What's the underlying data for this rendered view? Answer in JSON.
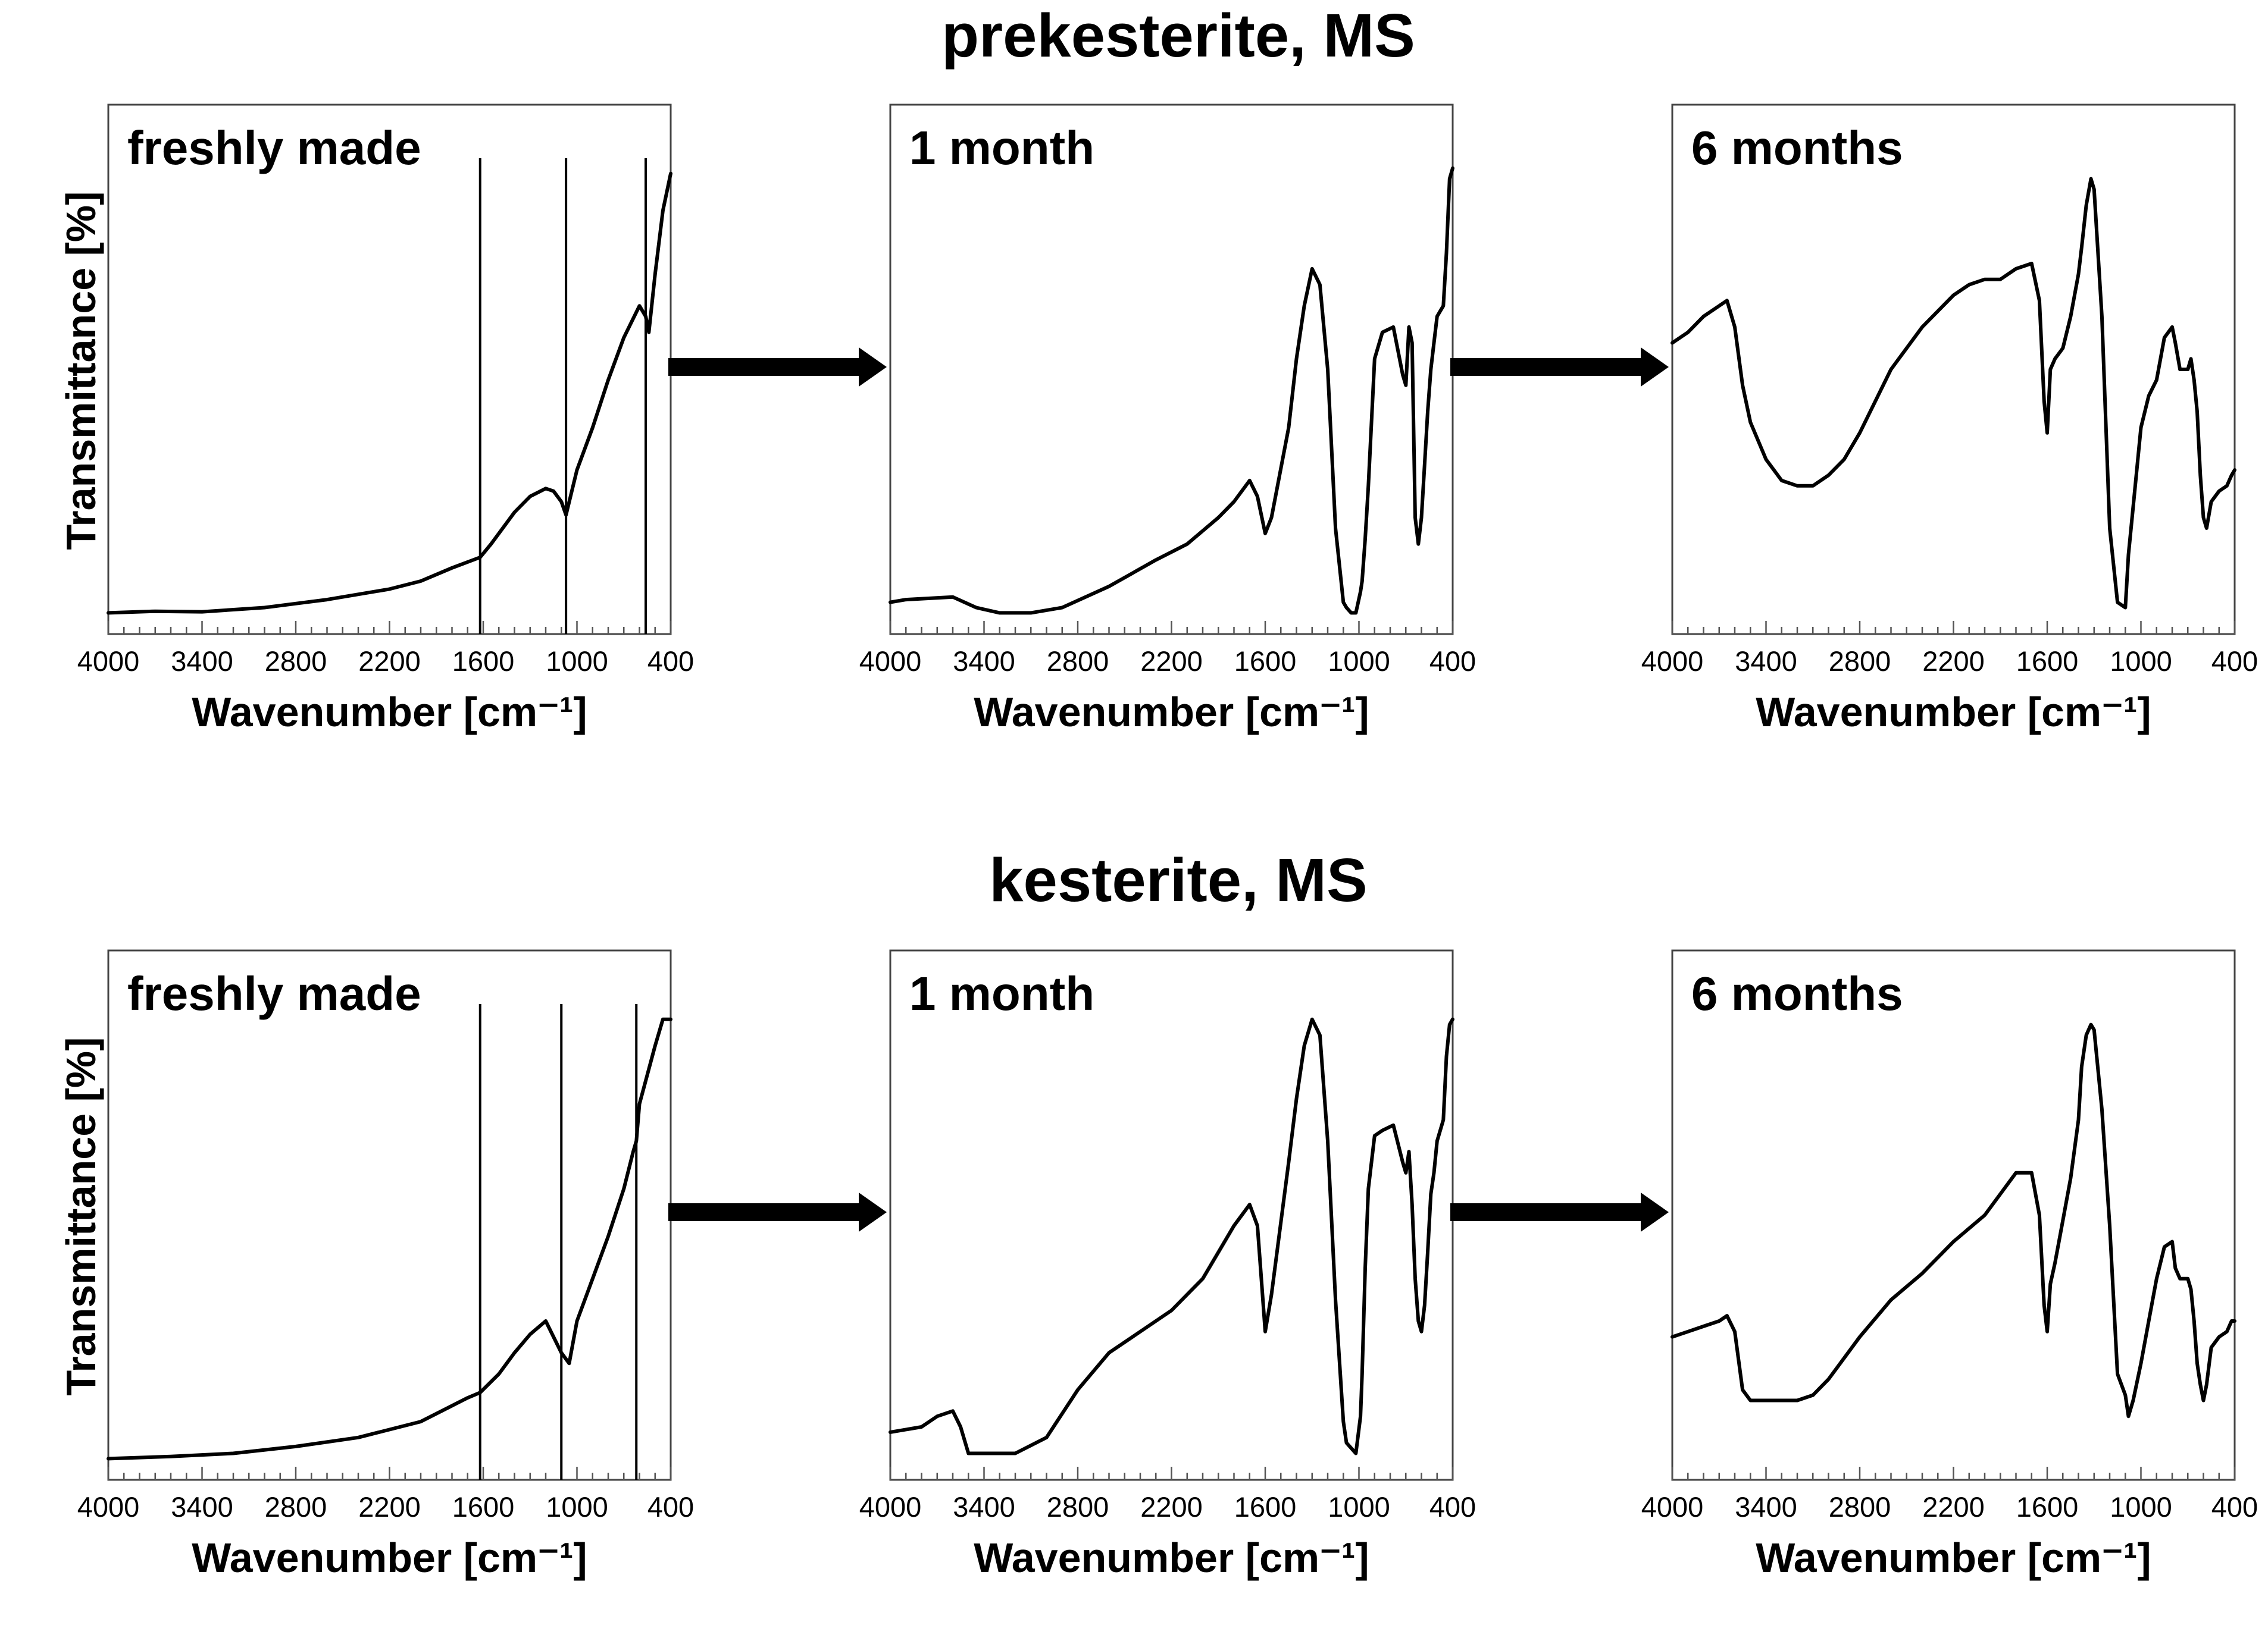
{
  "chart_data": [
    {
      "type": "line",
      "row_title": "prekesterite, MS",
      "ylabel": "Transmittance [%]",
      "xlabel": "Wavenumber [cm⁻¹]",
      "xlim": [
        4000,
        400
      ],
      "ylim": [
        0,
        100
      ],
      "xticks": [
        "4000",
        "3400",
        "2800",
        "2200",
        "1600",
        "1000",
        "400"
      ],
      "arrows_between_panels": true,
      "panels": [
        {
          "label": "freshly made",
          "markers": [
            1620,
            1070,
            560
          ],
          "series": [
            {
              "name": "freshly made",
              "x": [
                4000,
                3700,
                3400,
                3000,
                2600,
                2200,
                2000,
                1800,
                1620,
                1550,
                1400,
                1300,
                1200,
                1150,
                1100,
                1070,
                1000,
                900,
                800,
                700,
                600,
                560,
                540,
                500,
                450,
                400
              ],
              "y": [
                4,
                4.3,
                4.2,
                5,
                6.5,
                8.5,
                10,
                12.5,
                14.5,
                17,
                23,
                26,
                27.5,
                27,
                25,
                22.5,
                31,
                39,
                48,
                56,
                62,
                60,
                57,
                68,
                80,
                87
              ]
            }
          ]
        },
        {
          "label": "1 month",
          "markers": [],
          "series": [
            {
              "name": "1 month",
              "x": [
                4000,
                3900,
                3600,
                3450,
                3300,
                3100,
                2900,
                2600,
                2300,
                2100,
                1900,
                1800,
                1700,
                1650,
                1600,
                1560,
                1450,
                1400,
                1350,
                1300,
                1250,
                1200,
                1150,
                1100,
                1080,
                1050,
                1020,
                990,
                980,
                960,
                940,
                900,
                850,
                780,
                720,
                700,
                680,
                660,
                640,
                620,
                600,
                580,
                560,
                540,
                520,
                500,
                460,
                440,
                420,
                400
              ],
              "y": [
                6,
                6.5,
                7,
                5,
                4,
                4,
                5,
                9,
                14,
                17,
                22,
                25,
                29,
                26,
                19,
                22,
                39,
                52,
                62,
                69,
                66,
                50,
                20,
                6,
                5,
                4,
                4,
                8,
                10,
                18,
                28,
                52,
                57,
                58,
                49,
                47,
                58,
                55,
                22,
                17,
                22,
                32,
                42,
                50,
                55,
                60,
                62,
                72,
                86,
                88
              ]
            }
          ]
        },
        {
          "label": "6 months",
          "markers": [],
          "series": [
            {
              "name": "6 months",
              "x": [
                4000,
                3900,
                3800,
                3700,
                3650,
                3600,
                3550,
                3500,
                3400,
                3300,
                3200,
                3100,
                3000,
                2900,
                2800,
                2600,
                2400,
                2200,
                2100,
                2000,
                1900,
                1800,
                1700,
                1650,
                1620,
                1600,
                1580,
                1550,
                1500,
                1450,
                1400,
                1380,
                1350,
                1320,
                1300,
                1250,
                1200,
                1150,
                1100,
                1080,
                1050,
                1000,
                950,
                900,
                850,
                800,
                780,
                750,
                700,
                680,
                660,
                640,
                620,
                600,
                580,
                550,
                500,
                450,
                420,
                400
              ],
              "y": [
                55,
                57,
                60,
                62,
                63,
                58,
                47,
                40,
                33,
                29,
                28,
                28,
                30,
                33,
                38,
                50,
                58,
                64,
                66,
                67,
                67,
                69,
                70,
                63,
                44,
                38,
                50,
                52,
                54,
                60,
                68,
                73,
                81,
                86,
                84,
                60,
                20,
                6,
                5,
                15,
                24,
                39,
                45,
                48,
                56,
                58,
                55,
                50,
                50,
                52,
                48,
                42,
                30,
                22,
                20,
                25,
                27,
                28,
                30,
                31
              ]
            }
          ]
        }
      ]
    },
    {
      "type": "line",
      "row_title": "kesterite, MS",
      "ylabel": "Transmittance [%]",
      "xlabel": "Wavenumber [cm⁻¹]",
      "xlim": [
        4000,
        400
      ],
      "ylim": [
        0,
        100
      ],
      "xticks": [
        "4000",
        "3400",
        "2800",
        "2200",
        "1600",
        "1000",
        "400"
      ],
      "arrows_between_panels": true,
      "panels": [
        {
          "label": "freshly made",
          "markers": [
            1620,
            1100,
            620
          ],
          "series": [
            {
              "name": "freshly made",
              "x": [
                4000,
                3600,
                3200,
                2800,
                2400,
                2000,
                1800,
                1700,
                1620,
                1500,
                1400,
                1300,
                1200,
                1100,
                1050,
                1000,
                900,
                800,
                700,
                640,
                620,
                600,
                500,
                450,
                400
              ],
              "y": [
                4,
                4.4,
                5,
                6.3,
                8,
                11,
                14,
                15.5,
                16.5,
                20,
                24,
                27.5,
                30,
                24,
                22,
                30,
                38,
                46,
                55,
                62,
                64,
                71,
                82,
                87,
                87
              ]
            }
          ]
        },
        {
          "label": "1 month",
          "markers": [],
          "series": [
            {
              "name": "1 month",
              "x": [
                4000,
                3800,
                3700,
                3600,
                3550,
                3500,
                3400,
                3200,
                3000,
                2800,
                2600,
                2400,
                2200,
                2000,
                1900,
                1800,
                1700,
                1650,
                1600,
                1560,
                1450,
                1400,
                1350,
                1300,
                1250,
                1200,
                1150,
                1100,
                1080,
                1050,
                1020,
                990,
                980,
                960,
                940,
                900,
                850,
                780,
                720,
                700,
                680,
                660,
                640,
                620,
                600,
                580,
                560,
                540,
                520,
                500,
                460,
                440,
                420,
                400
              ],
              "y": [
                9,
                10,
                12,
                13,
                10,
                5,
                5,
                5,
                8,
                17,
                24,
                28,
                32,
                38,
                43,
                48,
                52,
                48,
                28,
                35,
                60,
                72,
                82,
                87,
                84,
                64,
                34,
                11,
                7,
                6,
                5,
                12,
                20,
                40,
                55,
                65,
                66,
                67,
                60,
                58,
                62,
                52,
                38,
                30,
                28,
                33,
                43,
                54,
                58,
                64,
                68,
                80,
                86,
                87
              ]
            }
          ]
        },
        {
          "label": "6 months",
          "markers": [],
          "series": [
            {
              "name": "6 months",
              "x": [
                4000,
                3900,
                3800,
                3700,
                3650,
                3600,
                3550,
                3500,
                3400,
                3300,
                3200,
                3100,
                3000,
                2800,
                2600,
                2400,
                2200,
                2000,
                1900,
                1800,
                1700,
                1650,
                1620,
                1600,
                1580,
                1550,
                1500,
                1450,
                1400,
                1380,
                1350,
                1320,
                1300,
                1250,
                1200,
                1150,
                1100,
                1080,
                1050,
                1000,
                950,
                900,
                850,
                800,
                780,
                750,
                700,
                680,
                660,
                640,
                620,
                600,
                580,
                550,
                500,
                450,
                420,
                400
              ],
              "y": [
                27,
                28,
                29,
                30,
                31,
                28,
                17,
                15,
                15,
                15,
                15,
                16,
                19,
                27,
                34,
                39,
                45,
                50,
                54,
                58,
                58,
                50,
                33,
                28,
                37,
                41,
                49,
                57,
                68,
                78,
                84,
                86,
                85,
                70,
                48,
                20,
                16,
                12,
                15,
                22,
                30,
                38,
                44,
                45,
                40,
                38,
                38,
                36,
                30,
                22,
                18,
                15,
                18,
                25,
                27,
                28,
                30,
                30
              ]
            }
          ]
        }
      ]
    }
  ]
}
